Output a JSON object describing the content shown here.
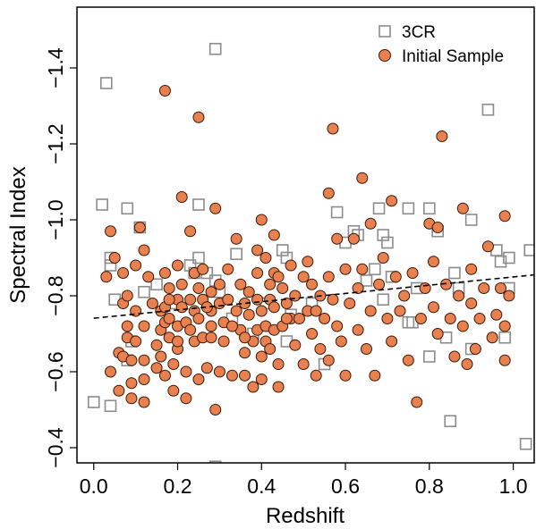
{
  "chart_data": {
    "type": "scatter",
    "xlabel": "Redshift",
    "ylabel": "Spectral Index",
    "xlim": [
      -0.04,
      1.05
    ],
    "ylim": [
      -0.36,
      -1.56
    ],
    "y_inverted": true,
    "x_ticks": [
      {
        "value": 0.0,
        "label": "0.0"
      },
      {
        "value": 0.2,
        "label": "0.2"
      },
      {
        "value": 0.4,
        "label": "0.4"
      },
      {
        "value": 0.6,
        "label": "0.6"
      },
      {
        "value": 0.8,
        "label": "0.8"
      },
      {
        "value": 1.0,
        "label": "1.0"
      }
    ],
    "y_ticks": [
      {
        "value": -0.4,
        "label": "−0.4"
      },
      {
        "value": -0.6,
        "label": "−0.6"
      },
      {
        "value": -0.8,
        "label": "−0.8"
      },
      {
        "value": -1.0,
        "label": "−1.0"
      },
      {
        "value": -1.2,
        "label": "−1.2"
      },
      {
        "value": -1.4,
        "label": "−1.4"
      }
    ],
    "grid": false,
    "legend_position": "top-right",
    "colors": {
      "initial_fill": "#e8804f",
      "initial_stroke": "#3a1a08",
      "threecr_stroke": "#8c8c8c",
      "fit_line": "#000000"
    },
    "fit_line": {
      "style": "dashed",
      "points": [
        [
          0.0,
          -0.741
        ],
        [
          1.05,
          -0.855
        ]
      ]
    },
    "series": [
      {
        "name": "3CR",
        "marker": "open-square",
        "points": [
          [
            0.0,
            -0.52
          ],
          [
            0.03,
            -1.36
          ],
          [
            0.02,
            -1.04
          ],
          [
            0.08,
            -1.03
          ],
          [
            0.04,
            -0.9
          ],
          [
            0.04,
            -0.88
          ],
          [
            0.05,
            -0.79
          ],
          [
            0.04,
            -0.51
          ],
          [
            0.08,
            -0.63
          ],
          [
            0.09,
            -0.68
          ],
          [
            0.11,
            -0.98
          ],
          [
            0.12,
            -0.81
          ],
          [
            0.15,
            -0.83
          ],
          [
            0.19,
            -0.78
          ],
          [
            0.23,
            -0.88
          ],
          [
            0.24,
            -0.86
          ],
          [
            0.25,
            -0.9
          ],
          [
            0.25,
            -1.04
          ],
          [
            0.27,
            -0.86
          ],
          [
            0.29,
            -0.84
          ],
          [
            0.29,
            -1.45
          ],
          [
            0.29,
            -0.35
          ],
          [
            0.3,
            -0.81
          ],
          [
            0.33,
            -0.74
          ],
          [
            0.34,
            -0.91
          ],
          [
            0.38,
            -0.7
          ],
          [
            0.41,
            -0.78
          ],
          [
            0.45,
            -0.92
          ],
          [
            0.46,
            -0.9
          ],
          [
            0.46,
            -0.68
          ],
          [
            0.47,
            -0.75
          ],
          [
            0.52,
            -0.78
          ],
          [
            0.55,
            -0.62
          ],
          [
            0.58,
            -1.02
          ],
          [
            0.6,
            -0.94
          ],
          [
            0.62,
            -0.97
          ],
          [
            0.63,
            -0.96
          ],
          [
            0.65,
            -0.84
          ],
          [
            0.67,
            -0.87
          ],
          [
            0.68,
            -1.03
          ],
          [
            0.69,
            -0.96
          ],
          [
            0.69,
            -0.79
          ],
          [
            0.7,
            -0.94
          ],
          [
            0.71,
            -0.85
          ],
          [
            0.75,
            -1.03
          ],
          [
            0.75,
            -0.73
          ],
          [
            0.76,
            -0.73
          ],
          [
            0.77,
            -0.82
          ],
          [
            0.8,
            -0.64
          ],
          [
            0.8,
            -1.03
          ],
          [
            0.82,
            -0.97
          ],
          [
            0.84,
            -0.69
          ],
          [
            0.85,
            -0.47
          ],
          [
            0.86,
            -0.86
          ],
          [
            0.87,
            -0.82
          ],
          [
            0.9,
            -1.0
          ],
          [
            0.9,
            -0.66
          ],
          [
            0.94,
            -1.29
          ],
          [
            0.96,
            -0.92
          ],
          [
            0.97,
            -0.89
          ],
          [
            0.98,
            -0.69
          ],
          [
            0.99,
            -0.9
          ],
          [
            0.99,
            -0.82
          ],
          [
            1.03,
            -0.41
          ],
          [
            1.04,
            -0.92
          ]
        ]
      },
      {
        "name": "Initial Sample",
        "marker": "filled-circle",
        "points": [
          [
            0.03,
            -0.85
          ],
          [
            0.04,
            -0.6
          ],
          [
            0.04,
            -0.97
          ],
          [
            0.05,
            -0.9
          ],
          [
            0.06,
            -0.55
          ],
          [
            0.06,
            -0.65
          ],
          [
            0.07,
            -0.86
          ],
          [
            0.07,
            -0.78
          ],
          [
            0.07,
            -0.64
          ],
          [
            0.08,
            -0.8
          ],
          [
            0.08,
            -0.72
          ],
          [
            0.08,
            -0.69
          ],
          [
            0.09,
            -0.63
          ],
          [
            0.09,
            -0.57
          ],
          [
            0.09,
            -0.53
          ],
          [
            0.1,
            -0.88
          ],
          [
            0.1,
            -0.76
          ],
          [
            0.1,
            -0.68
          ],
          [
            0.11,
            -0.98
          ],
          [
            0.12,
            -0.92
          ],
          [
            0.12,
            -0.72
          ],
          [
            0.12,
            -0.58
          ],
          [
            0.12,
            -0.52
          ],
          [
            0.13,
            -0.85
          ],
          [
            0.14,
            -0.78
          ],
          [
            0.15,
            -0.67
          ],
          [
            0.15,
            -0.61
          ],
          [
            0.16,
            -0.76
          ],
          [
            0.16,
            -0.71
          ],
          [
            0.16,
            -0.64
          ],
          [
            0.17,
            -1.34
          ],
          [
            0.17,
            -0.86
          ],
          [
            0.17,
            -0.77
          ],
          [
            0.17,
            -0.73
          ],
          [
            0.17,
            -0.59
          ],
          [
            0.18,
            -0.82
          ],
          [
            0.18,
            -0.74
          ],
          [
            0.18,
            -0.69
          ],
          [
            0.19,
            -0.62
          ],
          [
            0.19,
            -0.55
          ],
          [
            0.2,
            -0.88
          ],
          [
            0.2,
            -0.79
          ],
          [
            0.2,
            -0.72
          ],
          [
            0.2,
            -0.66
          ],
          [
            0.21,
            -1.06
          ],
          [
            0.21,
            -0.83
          ],
          [
            0.21,
            -0.77
          ],
          [
            0.22,
            -0.73
          ],
          [
            0.22,
            -0.6
          ],
          [
            0.22,
            -0.53
          ],
          [
            0.23,
            -0.97
          ],
          [
            0.23,
            -0.79
          ],
          [
            0.23,
            -0.71
          ],
          [
            0.24,
            -0.86
          ],
          [
            0.24,
            -0.76
          ],
          [
            0.24,
            -0.68
          ],
          [
            0.25,
            -1.27
          ],
          [
            0.25,
            -0.82
          ],
          [
            0.25,
            -0.74
          ],
          [
            0.25,
            -0.58
          ],
          [
            0.26,
            -0.87
          ],
          [
            0.26,
            -0.79
          ],
          [
            0.26,
            -0.69
          ],
          [
            0.27,
            -0.61
          ],
          [
            0.28,
            -0.81
          ],
          [
            0.28,
            -0.76
          ],
          [
            0.28,
            -0.72
          ],
          [
            0.29,
            -1.03
          ],
          [
            0.29,
            -0.5
          ],
          [
            0.3,
            -0.83
          ],
          [
            0.3,
            -0.78
          ],
          [
            0.3,
            -0.6
          ],
          [
            0.31,
            -0.73
          ],
          [
            0.31,
            -0.68
          ],
          [
            0.32,
            -0.87
          ],
          [
            0.32,
            -0.79
          ],
          [
            0.33,
            -0.59
          ],
          [
            0.34,
            -0.95
          ],
          [
            0.34,
            -0.76
          ],
          [
            0.35,
            -0.83
          ],
          [
            0.35,
            -0.71
          ],
          [
            0.36,
            -0.78
          ],
          [
            0.36,
            -0.65
          ],
          [
            0.36,
            -0.59
          ],
          [
            0.37,
            -0.81
          ],
          [
            0.37,
            -0.75
          ],
          [
            0.38,
            -0.68
          ],
          [
            0.38,
            -0.56
          ],
          [
            0.39,
            -0.92
          ],
          [
            0.39,
            -0.86
          ],
          [
            0.39,
            -0.79
          ],
          [
            0.39,
            -0.71
          ],
          [
            0.4,
            -1.0
          ],
          [
            0.4,
            -0.76
          ],
          [
            0.4,
            -0.64
          ],
          [
            0.4,
            -0.58
          ],
          [
            0.41,
            -0.9
          ],
          [
            0.41,
            -0.72
          ],
          [
            0.41,
            -0.68
          ],
          [
            0.42,
            -0.83
          ],
          [
            0.42,
            -0.79
          ],
          [
            0.42,
            -0.66
          ],
          [
            0.43,
            -0.96
          ],
          [
            0.43,
            -0.86
          ],
          [
            0.43,
            -0.77
          ],
          [
            0.43,
            -0.71
          ],
          [
            0.44,
            -0.85
          ],
          [
            0.44,
            -0.62
          ],
          [
            0.44,
            -0.56
          ],
          [
            0.45,
            -0.82
          ],
          [
            0.45,
            -0.72
          ],
          [
            0.46,
            -0.78
          ],
          [
            0.47,
            -0.88
          ],
          [
            0.47,
            -0.74
          ],
          [
            0.48,
            -0.8
          ],
          [
            0.48,
            -0.67
          ],
          [
            0.49,
            -0.74
          ],
          [
            0.5,
            -0.85
          ],
          [
            0.5,
            -0.62
          ],
          [
            0.51,
            -0.89
          ],
          [
            0.51,
            -0.76
          ],
          [
            0.52,
            -0.83
          ],
          [
            0.52,
            -0.7
          ],
          [
            0.53,
            -0.59
          ],
          [
            0.54,
            -0.8
          ],
          [
            0.54,
            -0.66
          ],
          [
            0.55,
            -0.74
          ],
          [
            0.56,
            -0.85
          ],
          [
            0.56,
            -1.07
          ],
          [
            0.56,
            -0.63
          ],
          [
            0.57,
            -1.24
          ],
          [
            0.57,
            -0.79
          ],
          [
            0.58,
            -0.95
          ],
          [
            0.58,
            -0.72
          ],
          [
            0.59,
            -0.68
          ],
          [
            0.6,
            -0.87
          ],
          [
            0.6,
            -0.59
          ],
          [
            0.61,
            -0.78
          ],
          [
            0.62,
            -0.95
          ],
          [
            0.63,
            -0.82
          ],
          [
            0.63,
            -0.71
          ],
          [
            0.64,
            -1.11
          ],
          [
            0.64,
            -0.87
          ],
          [
            0.65,
            -0.66
          ],
          [
            0.66,
            -0.99
          ],
          [
            0.66,
            -0.76
          ],
          [
            0.67,
            -0.59
          ],
          [
            0.68,
            -0.83
          ],
          [
            0.69,
            -0.9
          ],
          [
            0.7,
            -0.74
          ],
          [
            0.71,
            -1.05
          ],
          [
            0.71,
            -0.68
          ],
          [
            0.72,
            -0.85
          ],
          [
            0.73,
            -0.76
          ],
          [
            0.74,
            -0.8
          ],
          [
            0.75,
            -0.63
          ],
          [
            0.76,
            -0.86
          ],
          [
            0.77,
            -0.52
          ],
          [
            0.78,
            -0.74
          ],
          [
            0.79,
            -0.82
          ],
          [
            0.8,
            -0.99
          ],
          [
            0.81,
            -0.77
          ],
          [
            0.81,
            -0.89
          ],
          [
            0.82,
            -0.98
          ],
          [
            0.82,
            -0.7
          ],
          [
            0.83,
            -1.22
          ],
          [
            0.84,
            -0.83
          ],
          [
            0.85,
            -0.74
          ],
          [
            0.86,
            -0.64
          ],
          [
            0.87,
            -0.8
          ],
          [
            0.88,
            -1.03
          ],
          [
            0.88,
            -0.72
          ],
          [
            0.89,
            -0.62
          ],
          [
            0.9,
            -0.87
          ],
          [
            0.9,
            -0.78
          ],
          [
            0.91,
            -0.66
          ],
          [
            0.92,
            -0.74
          ],
          [
            0.93,
            -0.82
          ],
          [
            0.94,
            -0.93
          ],
          [
            0.95,
            -0.69
          ],
          [
            0.96,
            -0.75
          ],
          [
            0.97,
            -0.82
          ],
          [
            0.98,
            -1.01
          ],
          [
            0.98,
            -0.72
          ],
          [
            0.98,
            -0.63
          ],
          [
            0.99,
            -0.8
          ],
          [
            0.12,
            -0.63
          ],
          [
            0.2,
            -0.68
          ],
          [
            0.28,
            -0.69
          ],
          [
            0.33,
            -0.72
          ],
          [
            0.36,
            -0.69
          ],
          [
            0.46,
            -0.74
          ],
          [
            0.53,
            -0.76
          ],
          [
            0.27,
            -0.77
          ],
          [
            0.18,
            -0.79
          ]
        ]
      }
    ]
  }
}
